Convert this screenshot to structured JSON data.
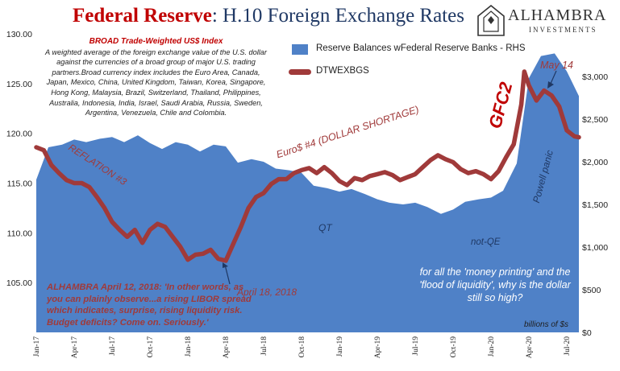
{
  "header": {
    "title_lead": "Federal Reserve",
    "title_rest": ": H.10 Foreign Exchange Rates"
  },
  "logo": {
    "name": "ALHAMBRA",
    "sub": "INVESTMENTS"
  },
  "index_box": {
    "heading": "BROAD Trade-Weighted US$ Index",
    "body": "A weighted average of the foreign exchange value of the U.S. dollar against the currencies of a broad group of major U.S. trading partners.Broad currency index includes the Euro Area, Canada, Japan, Mexico, China, United Kingdom, Taiwan, Korea, Singapore, Hong Kong, Malaysia, Brazil, Switzerland, Thailand, Philippines, Australia, Indonesia, India, Israel, Saudi Arabia, Russia, Sweden, Argentina, Venezuela, Chile and Colombia."
  },
  "annotations": {
    "reflation": "REFLATION #3",
    "euro_dollar": "Euro$ #4 (DOLLAR SHORTAGE)",
    "gfc2": "GFC2",
    "may14": "May 14",
    "powell": "Powell panic",
    "qt": "QT",
    "not_qe": "not-QE",
    "april18": "April 18, 2018",
    "quote": "ALHAMBRA April 12, 2018: 'In other words, as you can plainly observe...a rising LIBOR spread which indicates,  surprise, rising liquidity risk. Budget deficits? Come on.  Seriously.'",
    "money_printing": "for all the 'money printing' and the 'flood of liquidity', why is the dollar still so high?",
    "units": "billions of $s"
  },
  "colors": {
    "area": "#4f81c7",
    "line": "#a03a3a",
    "title_navy": "#1f3864",
    "title_red": "#c00000",
    "annot_red": "#a03a3a",
    "annot_navy": "#1f3864"
  },
  "chart_data": {
    "type": "line",
    "title": "Federal Reserve: H.10 Foreign Exchange Rates",
    "x_tick_labels": [
      "Jan-17",
      "Apr-17",
      "Jul-17",
      "Oct-17",
      "Jan-18",
      "Apr-18",
      "Jul-18",
      "Oct-18",
      "Jan-19",
      "Apr-19",
      "Jul-19",
      "Oct-19",
      "Jan-20",
      "Apr-20",
      "Jul-20"
    ],
    "y_left": {
      "ylim": [
        100,
        130
      ],
      "tick_labels": [
        "105.00",
        "110.00",
        "115.00",
        "120.00",
        "125.00",
        "130.00"
      ]
    },
    "y_right": {
      "ylim": [
        0,
        3500
      ],
      "tick_labels": [
        "$0",
        "$500",
        "$1,000",
        "$1,500",
        "$2,000",
        "$2,500",
        "$3,000"
      ]
    },
    "grid": false,
    "legend": {
      "placement": "top-right"
    },
    "series": [
      {
        "name": "Reserve Balances wFederal Reserve Banks - RHS",
        "kind": "area",
        "axis": "right",
        "x": [
          2017.0,
          2017.08,
          2017.17,
          2017.25,
          2017.33,
          2017.42,
          2017.5,
          2017.58,
          2017.67,
          2017.75,
          2017.83,
          2017.92,
          2018.0,
          2018.08,
          2018.17,
          2018.25,
          2018.33,
          2018.42,
          2018.5,
          2018.58,
          2018.67,
          2018.75,
          2018.83,
          2018.92,
          2019.0,
          2019.08,
          2019.17,
          2019.25,
          2019.33,
          2019.42,
          2019.5,
          2019.58,
          2019.67,
          2019.75,
          2019.83,
          2019.92,
          2020.0,
          2020.08,
          2020.17,
          2020.25,
          2020.33,
          2020.42,
          2020.5,
          2020.58
        ],
        "values": [
          1790,
          2170,
          2200,
          2260,
          2230,
          2270,
          2290,
          2230,
          2310,
          2220,
          2150,
          2230,
          2200,
          2120,
          2200,
          2180,
          1990,
          2030,
          2000,
          1920,
          1900,
          1870,
          1720,
          1690,
          1650,
          1680,
          1620,
          1560,
          1520,
          1500,
          1520,
          1470,
          1390,
          1440,
          1530,
          1560,
          1580,
          1660,
          1980,
          2980,
          3240,
          3270,
          3060,
          2770
        ]
      },
      {
        "name": "DTWEXBGS",
        "kind": "line",
        "axis": "left",
        "x": [
          2017.0,
          2017.05,
          2017.1,
          2017.15,
          2017.2,
          2017.25,
          2017.3,
          2017.35,
          2017.4,
          2017.45,
          2017.5,
          2017.55,
          2017.6,
          2017.65,
          2017.7,
          2017.75,
          2017.8,
          2017.85,
          2017.9,
          2017.95,
          2018.0,
          2018.05,
          2018.1,
          2018.15,
          2018.2,
          2018.25,
          2018.3,
          2018.35,
          2018.4,
          2018.45,
          2018.5,
          2018.55,
          2018.6,
          2018.65,
          2018.7,
          2018.75,
          2018.8,
          2018.85,
          2018.9,
          2018.95,
          2019.0,
          2019.05,
          2019.1,
          2019.15,
          2019.2,
          2019.25,
          2019.3,
          2019.35,
          2019.4,
          2019.45,
          2019.5,
          2019.55,
          2019.6,
          2019.65,
          2019.7,
          2019.75,
          2019.8,
          2019.85,
          2019.9,
          2019.95,
          2020.0,
          2020.05,
          2020.1,
          2020.15,
          2020.2,
          2020.22,
          2020.25,
          2020.3,
          2020.35,
          2020.4,
          2020.45,
          2020.5,
          2020.55,
          2020.58
        ],
        "values": [
          118.6,
          118.3,
          116.8,
          116.0,
          115.3,
          115.0,
          115.0,
          114.6,
          113.6,
          112.5,
          111.1,
          110.3,
          109.6,
          110.3,
          109.0,
          110.3,
          110.9,
          110.6,
          109.6,
          108.6,
          107.3,
          107.8,
          107.9,
          108.3,
          107.4,
          107.2,
          108.9,
          110.6,
          112.5,
          113.6,
          114.0,
          114.9,
          115.4,
          115.4,
          116.0,
          116.3,
          116.5,
          116.0,
          116.6,
          116.0,
          115.2,
          114.8,
          115.5,
          115.3,
          115.7,
          115.9,
          116.1,
          115.8,
          115.3,
          115.6,
          115.9,
          116.6,
          117.3,
          117.8,
          117.4,
          117.1,
          116.4,
          116.0,
          116.2,
          115.9,
          115.4,
          116.2,
          117.6,
          118.9,
          122.9,
          126.2,
          124.8,
          123.3,
          124.3,
          123.8,
          122.7,
          120.3,
          119.7,
          119.6
        ]
      }
    ]
  }
}
